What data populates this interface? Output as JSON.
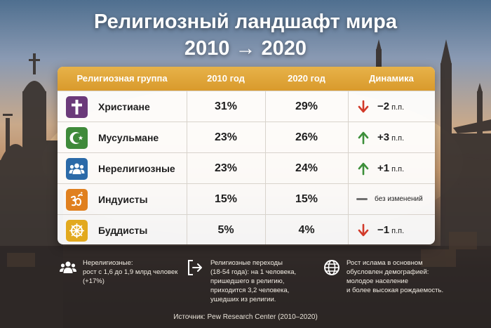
{
  "title_line1": "Религиозный ландшафт мира",
  "title_line2": "2010 → 2020",
  "table": {
    "headers": [
      "Религиозная группа",
      "2010 год",
      "2020 год",
      "Динамика"
    ],
    "rows": [
      {
        "icon": "cross-icon",
        "color": "#6b3a7a",
        "name": "Христиане",
        "v2010": "31%",
        "v2020": "29%",
        "trend": "down",
        "change": "−2",
        "unit": "п.п."
      },
      {
        "icon": "crescent-star-icon",
        "color": "#3f8a3a",
        "name": "Мусульмане",
        "v2010": "23%",
        "v2020": "26%",
        "trend": "up",
        "change": "+3",
        "unit": "п.п."
      },
      {
        "icon": "people-icon",
        "color": "#2b6aa8",
        "name": "Нерелигиозные",
        "v2010": "23%",
        "v2020": "24%",
        "trend": "up",
        "change": "+1",
        "unit": "п.п."
      },
      {
        "icon": "om-icon",
        "color": "#e0801f",
        "name": "Индуисты",
        "v2010": "15%",
        "v2020": "15%",
        "trend": "flat",
        "change": "без изменений",
        "unit": ""
      },
      {
        "icon": "dharma-wheel-icon",
        "color": "#e2a91e",
        "name": "Буддисты",
        "v2010": "5%",
        "v2020": "4%",
        "trend": "down",
        "change": "−1",
        "unit": "п.п."
      }
    ]
  },
  "trend_colors": {
    "up": "#3d8f3a",
    "down": "#d23a2a",
    "flat": "#6f6f6f"
  },
  "notes": [
    {
      "icon": "people-icon",
      "lines": [
        "Нерелигиозные:",
        "рост с 1,6 до 1,9 млрд человек",
        "(+17%)"
      ]
    },
    {
      "icon": "switch-icon",
      "lines": [
        "Религиозные переходы",
        "(18-54 года): на 1 человека,",
        "пришедшего в религию,",
        "приходится 3,2 человека,",
        "ушедших из религии."
      ]
    },
    {
      "icon": "globe-icon",
      "lines": [
        "Рост ислама в основном",
        "обусловлен демографией:",
        "молодое население",
        "и более высокая рождаемость."
      ]
    }
  ],
  "source": "Источник: Pew Research Center (2010–2020)"
}
